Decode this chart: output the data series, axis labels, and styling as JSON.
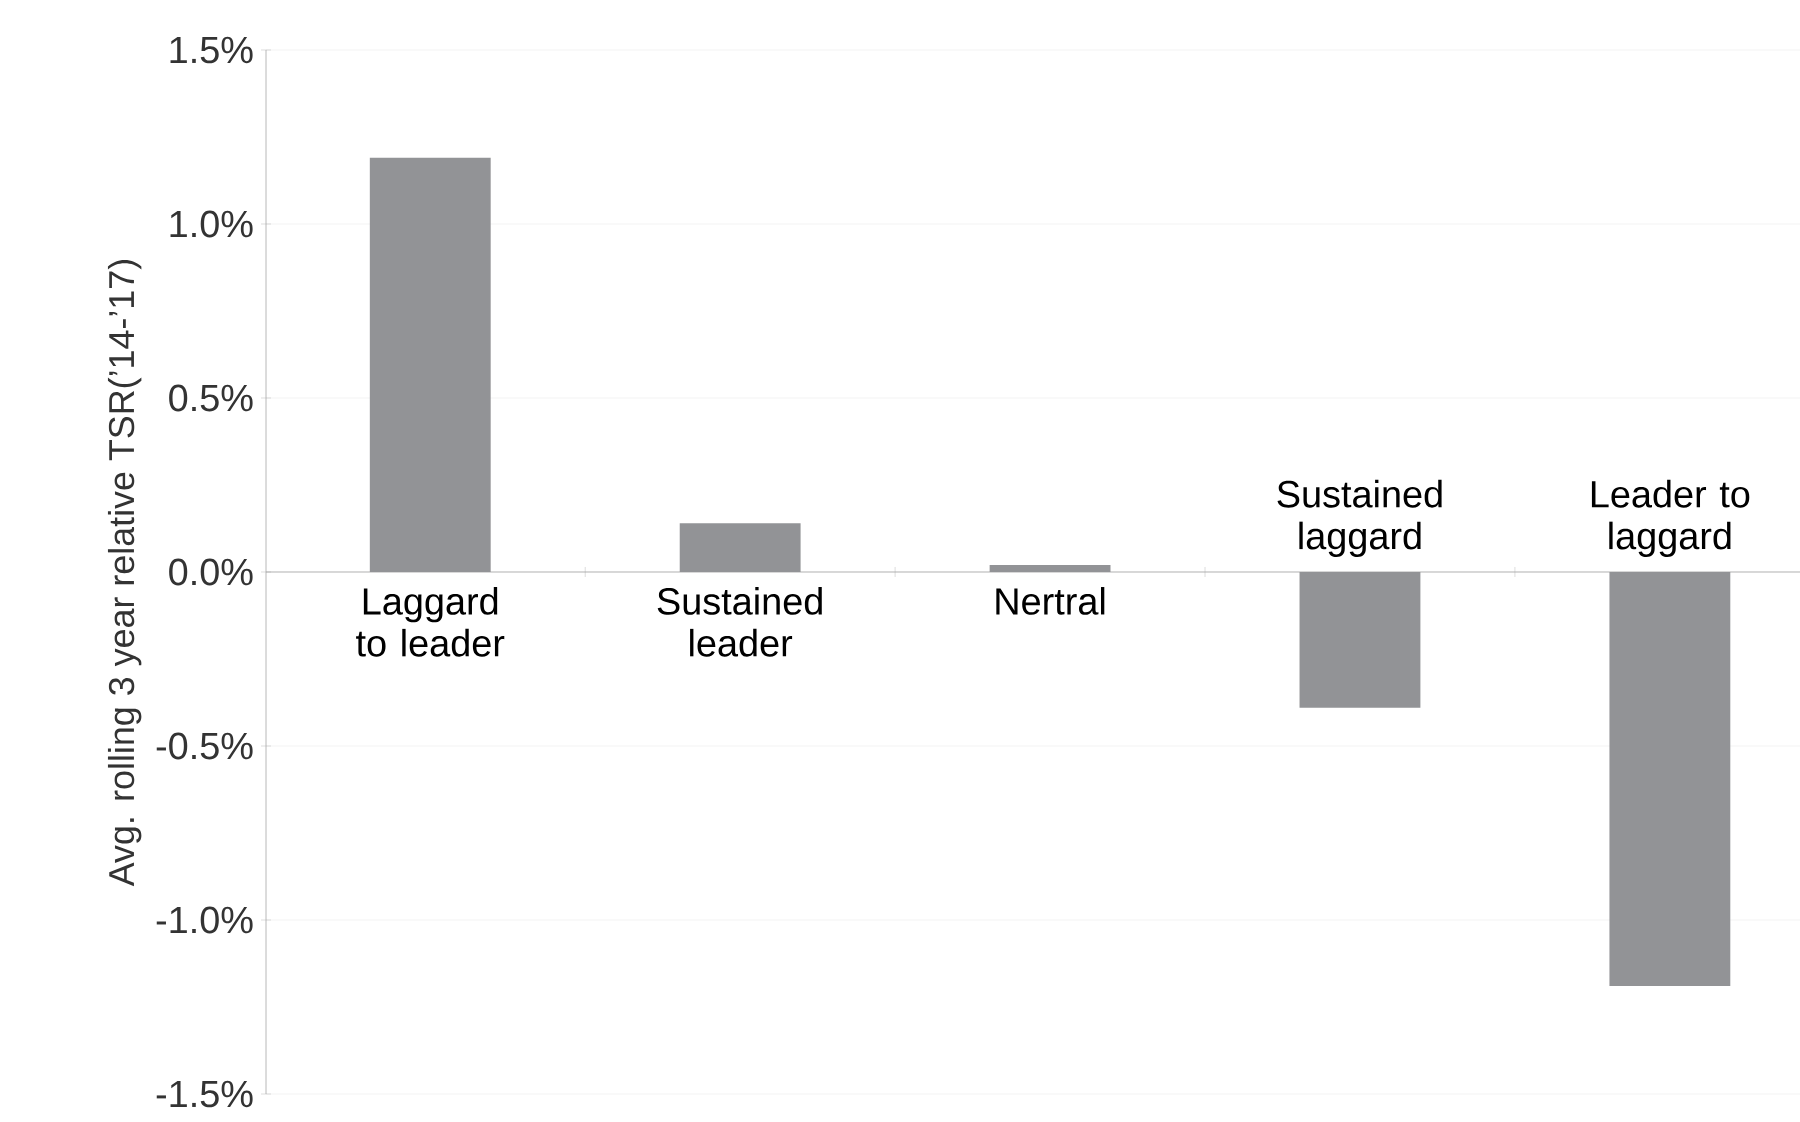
{
  "chart_data": {
    "type": "bar",
    "ylabel": "Avg. rolling 3 year relative TSR(’14-’17)",
    "categories": [
      "Laggard to leader",
      "Sustained leader",
      "Nertral",
      "Sustained laggard",
      "Leader to laggard"
    ],
    "values": [
      1.19,
      0.14,
      0.02,
      -0.39,
      -1.19
    ],
    "color": "#929396",
    "ylim": [
      -1.5,
      1.5
    ],
    "yticks": [
      {
        "value": -1.5,
        "label": "-1.5%"
      },
      {
        "value": -1.0,
        "label": "-1.0%"
      },
      {
        "value": -0.5,
        "label": "-0.5%"
      },
      {
        "value": 0.0,
        "label": "0.0%"
      },
      {
        "value": 0.5,
        "label": "0.5%"
      },
      {
        "value": 1.0,
        "label": "1.0%"
      },
      {
        "value": 1.5,
        "label": "1.5%"
      }
    ],
    "grid": "y"
  }
}
